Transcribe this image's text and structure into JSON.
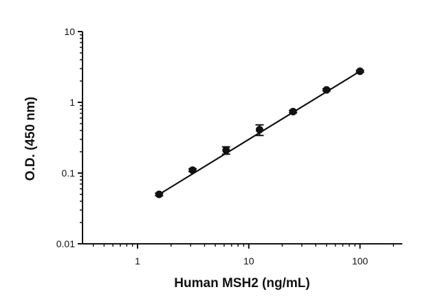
{
  "chart_data": {
    "type": "scatter",
    "xlabel": "Human MSH2 (ng/mL)",
    "ylabel": "O.D. (450 nm)",
    "x_scale": "log",
    "y_scale": "log",
    "xlim": [
      0.32,
      240
    ],
    "ylim": [
      0.01,
      10
    ],
    "x_ticks": [
      {
        "value": 1,
        "label": "1"
      },
      {
        "value": 10,
        "label": "10"
      },
      {
        "value": 100,
        "label": "100"
      }
    ],
    "y_ticks": [
      {
        "value": 0.01,
        "label": "0.01"
      },
      {
        "value": 0.1,
        "label": "0.1"
      },
      {
        "value": 1,
        "label": "1"
      },
      {
        "value": 10,
        "label": "10"
      }
    ],
    "grid": false,
    "marker": "circle",
    "color": "#111111",
    "series": [
      {
        "x": [
          1.5625,
          3.125,
          6.25,
          12.5,
          25,
          50,
          100
        ],
        "y": [
          0.05,
          0.11,
          0.21,
          0.41,
          0.74,
          1.5,
          2.75
        ],
        "y_error": [
          0.002,
          0.005,
          0.025,
          0.07,
          0.03,
          0.05,
          0.08
        ]
      }
    ],
    "fit_line": {
      "x_start": 1.5625,
      "x_end": 100,
      "y_start": 0.05,
      "y_end": 2.75
    }
  }
}
